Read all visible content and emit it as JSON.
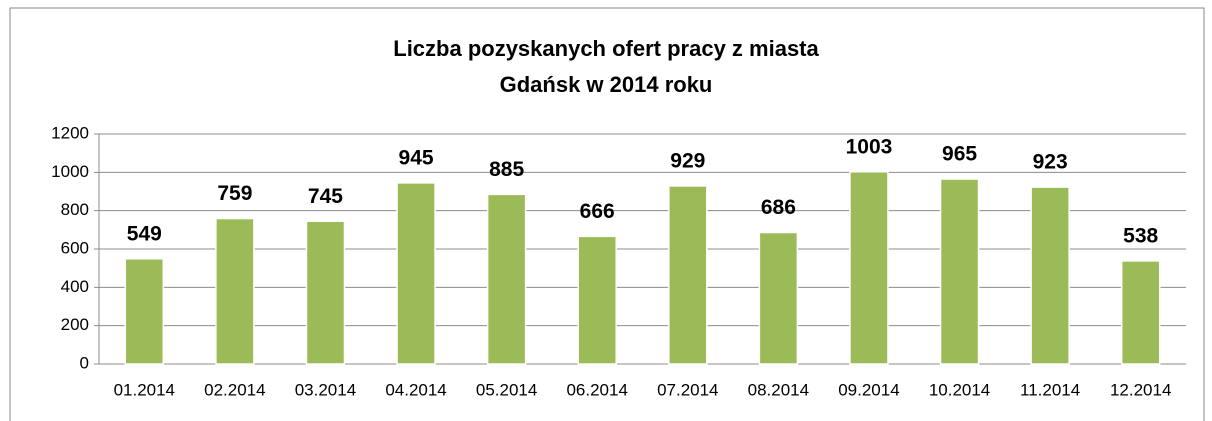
{
  "chart_data": {
    "type": "bar",
    "title": [
      "Liczba pozyskanych ofert pracy z miasta",
      "Gdańsk w 2014 roku"
    ],
    "categories": [
      "01.2014",
      "02.2014",
      "03.2014",
      "04.2014",
      "05.2014",
      "06.2014",
      "07.2014",
      "08.2014",
      "09.2014",
      "10.2014",
      "11.2014",
      "12.2014"
    ],
    "values": [
      549,
      759,
      745,
      945,
      885,
      666,
      929,
      686,
      1003,
      965,
      923,
      538
    ],
    "color": "#9bbb59",
    "ylim": [
      0,
      1200
    ],
    "yticks": [
      0,
      200,
      400,
      600,
      800,
      1000,
      1200
    ],
    "grid": true
  }
}
